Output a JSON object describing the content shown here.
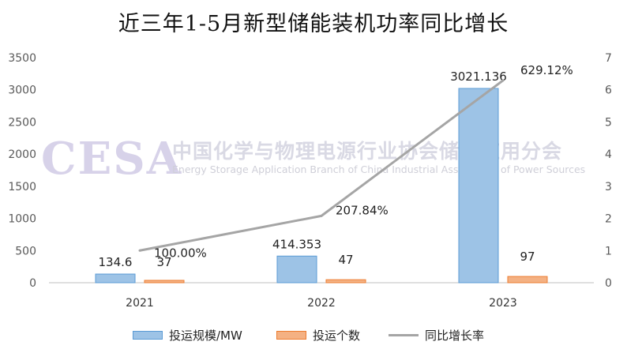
{
  "chart_data": {
    "type": "bar",
    "title": "近三年1-5月新型储能装机功率同比增长",
    "categories": [
      "2021",
      "2022",
      "2023"
    ],
    "series": [
      {
        "name": "投运规模/MW",
        "type": "bar",
        "axis": "left",
        "values": [
          134.6,
          414.353,
          3021.136
        ],
        "labels": [
          "134.6",
          "414.353",
          "3021.136"
        ],
        "color": "#9dc3e6",
        "border": "#5b9bd5"
      },
      {
        "name": "投运个数",
        "type": "bar",
        "axis": "left",
        "values": [
          37,
          47,
          97
        ],
        "labels": [
          "37",
          "47",
          "97"
        ],
        "color": "#f4b183",
        "border": "#ed7d31"
      },
      {
        "name": "同比增长率",
        "type": "line",
        "axis": "right",
        "values": [
          1.0,
          2.0784,
          6.2912
        ],
        "labels": [
          "100.00%",
          "207.84%",
          "629.12%"
        ],
        "color": "#a5a5a5"
      }
    ],
    "left_axis": {
      "min": 0,
      "max": 3500,
      "ticks": [
        "0",
        "500",
        "1000",
        "1500",
        "2000",
        "2500",
        "3000",
        "3500"
      ]
    },
    "right_axis": {
      "min": 0,
      "max": 7,
      "ticks": [
        "0",
        "1",
        "2",
        "3",
        "4",
        "5",
        "6",
        "7"
      ]
    },
    "grid": false,
    "legend": "bottom"
  },
  "watermark": {
    "logo": "CESA",
    "cn": "中国化学与物理电源行业协会储能应用分会",
    "en": "Energy Storage Application Branch of China Industrial Association of Power Sources"
  }
}
